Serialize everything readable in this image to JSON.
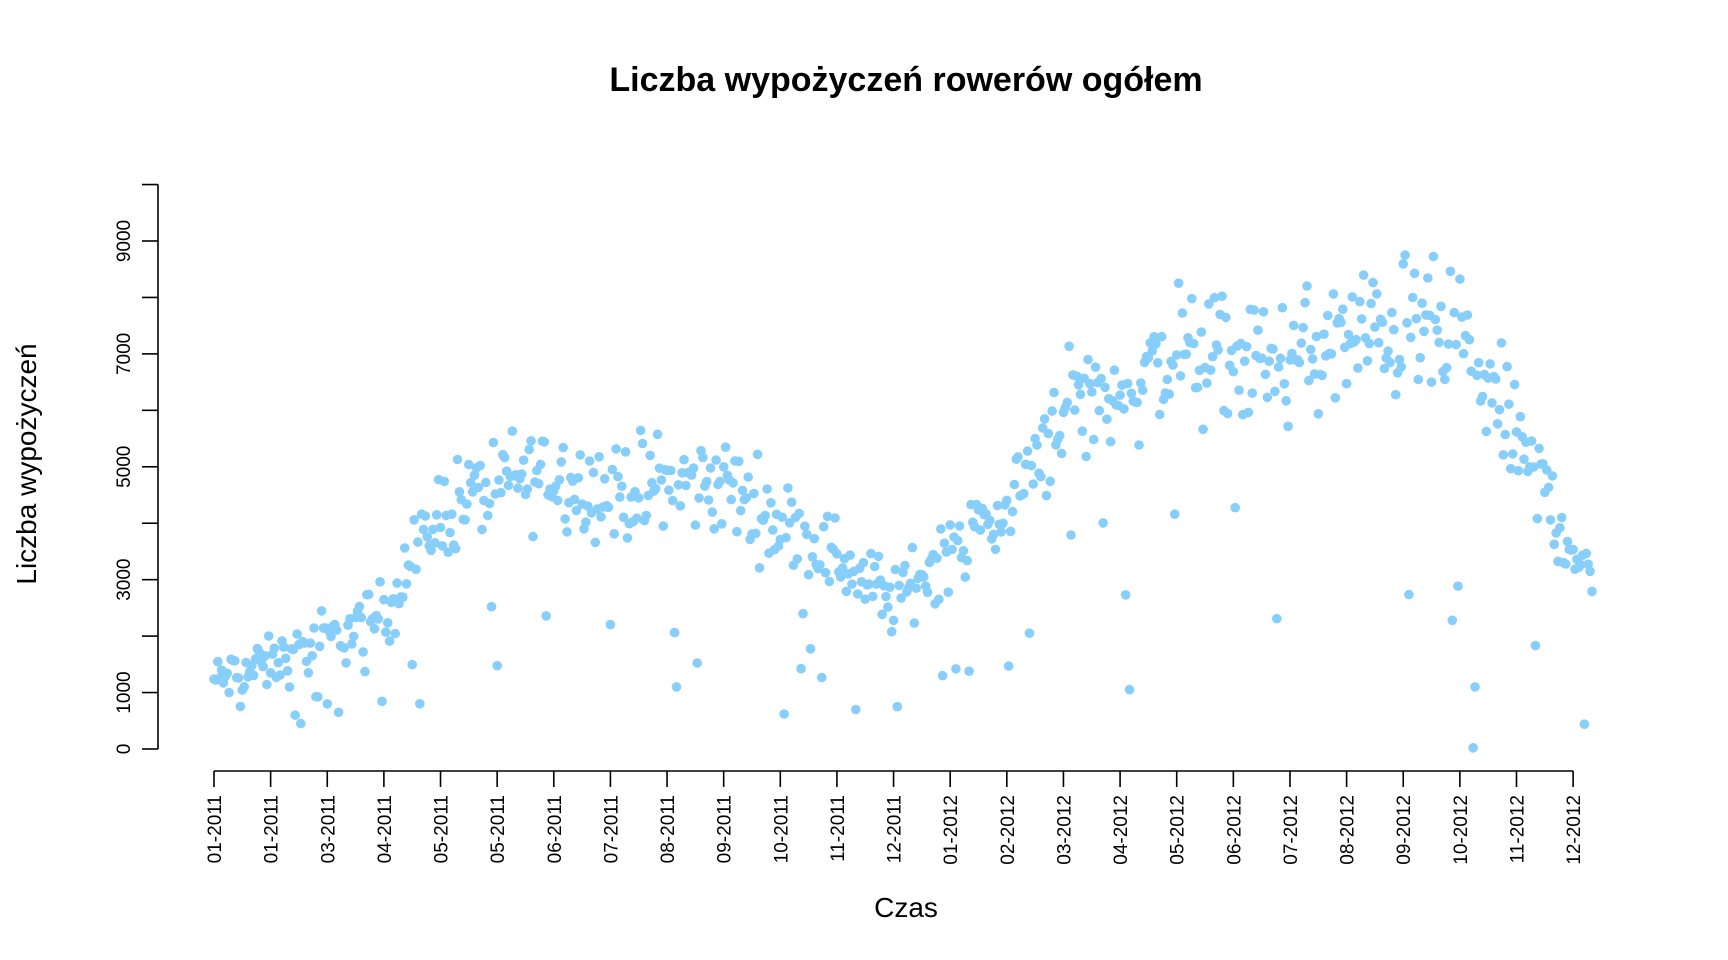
{
  "chart_data": {
    "type": "scatter",
    "title": "Liczba wypożyczeń rowerów ogółem",
    "xlabel": "Czas",
    "ylabel": "Liczba wypożyczeń",
    "color": "#87CEFA",
    "y_ticks": [
      0,
      1000,
      3000,
      5000,
      7000,
      9000
    ],
    "y_minor_ticks": [
      2000,
      4000,
      6000,
      8000,
      10000
    ],
    "ylim": [
      0,
      10000
    ],
    "x_tick_labels": [
      "01-2011",
      "01-2011",
      "03-2011",
      "04-2011",
      "05-2011",
      "05-2011",
      "06-2011",
      "07-2011",
      "08-2011",
      "09-2011",
      "10-2011",
      "11-2011",
      "12-2011",
      "01-2012",
      "02-2012",
      "03-2012",
      "04-2012",
      "05-2012",
      "06-2012",
      "07-2012",
      "08-2012",
      "09-2012",
      "10-2012",
      "11-2012",
      "12-2012"
    ],
    "x_unit": "day index (01-2011 = 0, ticks every 30 days)",
    "xlim": [
      0,
      730
    ],
    "monthly_profile": [
      {
        "x": 0,
        "y": 1200
      },
      {
        "x": 30,
        "y": 1500
      },
      {
        "x": 60,
        "y": 1900
      },
      {
        "x": 90,
        "y": 2400
      },
      {
        "x": 120,
        "y": 4200
      },
      {
        "x": 150,
        "y": 4700
      },
      {
        "x": 180,
        "y": 4900
      },
      {
        "x": 210,
        "y": 4500
      },
      {
        "x": 240,
        "y": 4700
      },
      {
        "x": 270,
        "y": 4700
      },
      {
        "x": 300,
        "y": 4000
      },
      {
        "x": 330,
        "y": 3400
      },
      {
        "x": 360,
        "y": 2600
      },
      {
        "x": 390,
        "y": 3600
      },
      {
        "x": 420,
        "y": 4200
      },
      {
        "x": 450,
        "y": 6100
      },
      {
        "x": 480,
        "y": 6300
      },
      {
        "x": 510,
        "y": 7000
      },
      {
        "x": 540,
        "y": 6800
      },
      {
        "x": 570,
        "y": 6900
      },
      {
        "x": 600,
        "y": 7200
      },
      {
        "x": 630,
        "y": 7500
      },
      {
        "x": 660,
        "y": 7200
      },
      {
        "x": 690,
        "y": 5500
      },
      {
        "x": 720,
        "y": 3600
      },
      {
        "x": 730,
        "y": 2700
      }
    ],
    "outliers": [
      {
        "x": 43,
        "y": 600
      },
      {
        "x": 46,
        "y": 450
      },
      {
        "x": 66,
        "y": 650
      },
      {
        "x": 109,
        "y": 800
      },
      {
        "x": 245,
        "y": 1100
      },
      {
        "x": 302,
        "y": 620
      },
      {
        "x": 340,
        "y": 700
      },
      {
        "x": 362,
        "y": 750
      },
      {
        "x": 386,
        "y": 1300
      },
      {
        "x": 485,
        "y": 1050
      },
      {
        "x": 667,
        "y": 22
      },
      {
        "x": 668,
        "y": 1100
      },
      {
        "x": 726,
        "y": 440
      }
    ],
    "grid": false,
    "legend": "none"
  }
}
